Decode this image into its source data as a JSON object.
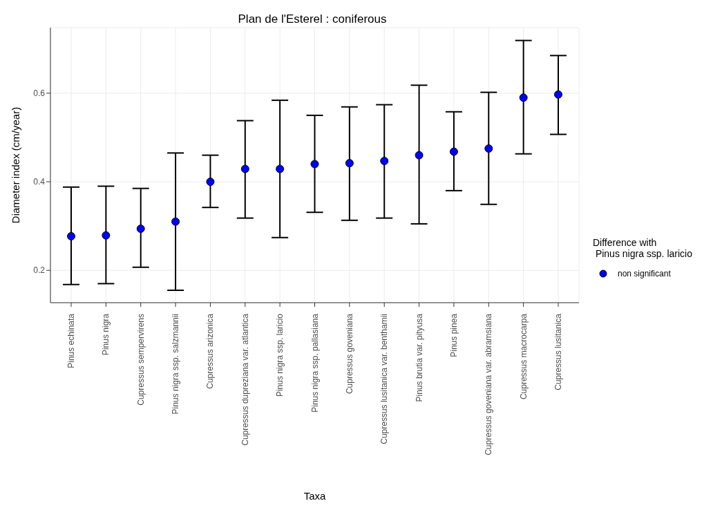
{
  "chart_data": {
    "type": "scatter",
    "title": "Plan de l'Esterel : coniferous",
    "xlabel": "Taxa",
    "ylabel": "Diameter index (cm/year)",
    "legend_title": "Difference with\n Pinus nigra ssp. laricio",
    "categories": [
      "Pinus echinata",
      "Pinus nigra",
      "Cupressus sempervirens",
      "Pinus nigra ssp. salzmannii",
      "Cupressus arizonica",
      "Cupressus dupreziana var. atlantica",
      "Pinus nigra ssp. laricio",
      "Pinus nigra ssp. pallasiana",
      "Cupressus goveniana",
      "Cupressus lusitanica var. benthamii",
      "Pinus brutia var. pityusa",
      "Pinus pinea",
      "Cupressus goveniana var. abramsiana",
      "Cupressus macrocarpa",
      "Cupressus lusitanica"
    ],
    "series": [
      {
        "name": "non significant",
        "color": "#0000ff",
        "values": [
          0.277,
          0.279,
          0.294,
          0.31,
          0.4,
          0.429,
          0.429,
          0.44,
          0.442,
          0.447,
          0.46,
          0.468,
          0.475,
          0.59,
          0.597
        ],
        "errors": [
          [
            0.168,
            0.388
          ],
          [
            0.17,
            0.39
          ],
          [
            0.207,
            0.385
          ],
          [
            0.155,
            0.465
          ],
          [
            0.342,
            0.46
          ],
          [
            0.318,
            0.538
          ],
          [
            0.274,
            0.584
          ],
          [
            0.331,
            0.55
          ],
          [
            0.313,
            0.569
          ],
          [
            0.318,
            0.574
          ],
          [
            0.305,
            0.618
          ],
          [
            0.38,
            0.558
          ],
          [
            0.349,
            0.602
          ],
          [
            0.463,
            0.719
          ],
          [
            0.507,
            0.685
          ]
        ]
      }
    ],
    "ylim": [
      0.127,
      0.748
    ],
    "yticks": [
      0.2,
      0.4,
      0.6
    ],
    "grid": true,
    "legend": "right",
    "marker": "circle"
  }
}
